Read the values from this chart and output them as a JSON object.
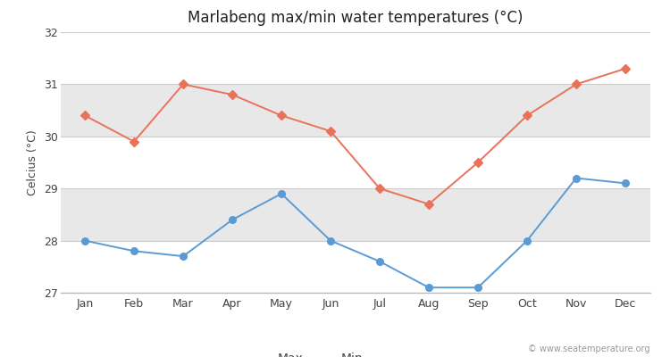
{
  "title": "Marlabeng max/min water temperatures (°C)",
  "ylabel": "Celcius (°C)",
  "months": [
    "Jan",
    "Feb",
    "Mar",
    "Apr",
    "May",
    "Jun",
    "Jul",
    "Aug",
    "Sep",
    "Oct",
    "Nov",
    "Dec"
  ],
  "max_temps": [
    30.4,
    29.9,
    31.0,
    30.8,
    30.4,
    30.1,
    29.0,
    28.7,
    29.5,
    30.4,
    31.0,
    31.3
  ],
  "min_temps": [
    28.0,
    27.8,
    27.7,
    28.4,
    28.9,
    28.0,
    27.6,
    27.1,
    27.1,
    28.0,
    29.2,
    29.1
  ],
  "max_color": "#E8735A",
  "min_color": "#5B9BD5",
  "bg_color": "#ffffff",
  "band_colors": [
    "#ffffff",
    "#e8e8e8",
    "#ffffff",
    "#e8e8e8",
    "#ffffff"
  ],
  "ylim": [
    27,
    32
  ],
  "yticks": [
    27,
    28,
    29,
    30,
    31,
    32
  ],
  "watermark": "© www.seatemperature.org",
  "title_fontsize": 12,
  "axis_fontsize": 9,
  "tick_fontsize": 9,
  "legend_fontsize": 10
}
